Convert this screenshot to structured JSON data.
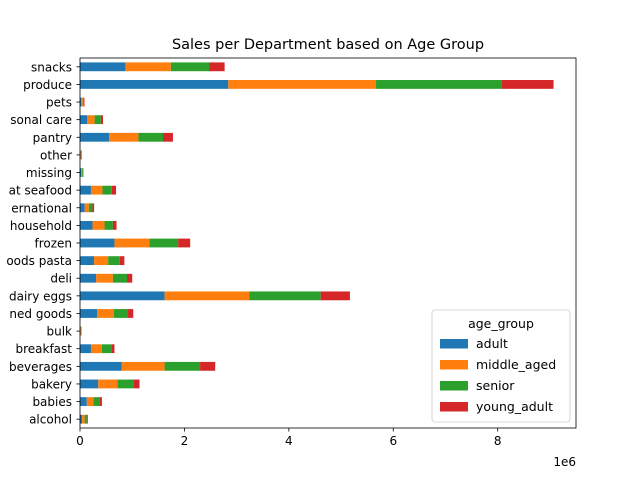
{
  "chart_data": {
    "type": "bar",
    "orientation": "horizontal",
    "stacked": true,
    "title": "Sales per Department based on Age Group",
    "xlabel": "",
    "ylabel": "",
    "x_offset_text": "1e6",
    "xlim": [
      0,
      9500000
    ],
    "xticks": [
      0,
      2000000,
      4000000,
      6000000,
      8000000
    ],
    "xtick_labels": [
      "0",
      "2",
      "4",
      "6",
      "8"
    ],
    "grid": false,
    "legend": {
      "title": "age_group",
      "placement": "lower right"
    },
    "categories": [
      "alcohol",
      "babies",
      "bakery",
      "beverages",
      "breakfast",
      "bulk",
      "canned goods",
      "dairy eggs",
      "deli",
      "dry goods pasta",
      "frozen",
      "household",
      "international",
      "meat seafood",
      "missing",
      "other",
      "pantry",
      "personal care",
      "pets",
      "produce",
      "snacks"
    ],
    "category_labels_visible": [
      "alcohol",
      "babies",
      "bakery",
      "beverages",
      "breakfast",
      "bulk",
      "ned goods",
      "dairy eggs",
      "deli",
      "oods pasta",
      "frozen",
      "household",
      "ernational",
      "at seafood",
      "missing",
      "other",
      "pantry",
      "sonal care",
      "pets",
      "produce",
      "snacks"
    ],
    "series": [
      {
        "name": "adult",
        "color": "#1f77b4",
        "values": [
          40000,
          130000,
          350000,
          800000,
          210000,
          9000,
          330000,
          1620000,
          310000,
          270000,
          660000,
          240000,
          90000,
          210000,
          22000,
          12000,
          560000,
          140000,
          25000,
          2840000,
          870000
        ]
      },
      {
        "name": "middle_aged",
        "color": "#ff7f0e",
        "values": [
          50000,
          130000,
          370000,
          820000,
          210000,
          9000,
          320000,
          1620000,
          320000,
          270000,
          670000,
          230000,
          80000,
          220000,
          20000,
          12000,
          560000,
          140000,
          30000,
          2830000,
          870000
        ]
      },
      {
        "name": "senior",
        "color": "#2ca02c",
        "values": [
          40000,
          110000,
          300000,
          680000,
          180000,
          8000,
          270000,
          1370000,
          270000,
          220000,
          550000,
          160000,
          70000,
          180000,
          18000,
          10000,
          470000,
          120000,
          20000,
          2400000,
          740000
        ]
      },
      {
        "name": "young_adult",
        "color": "#d62728",
        "values": [
          20000,
          50000,
          120000,
          290000,
          60000,
          4000,
          100000,
          560000,
          100000,
          90000,
          230000,
          70000,
          30000,
          80000,
          6000,
          4000,
          190000,
          40000,
          10000,
          1000000,
          290000
        ]
      }
    ]
  }
}
